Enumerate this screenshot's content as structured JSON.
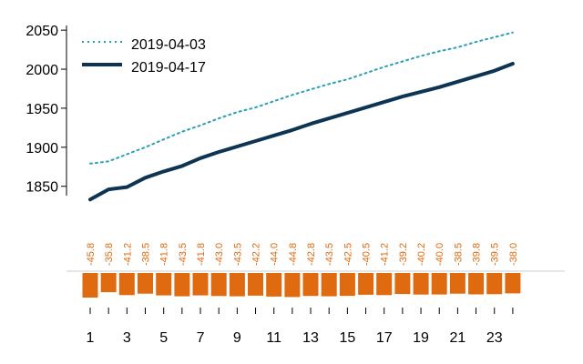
{
  "chart_data": [
    {
      "type": "line",
      "x": [
        1,
        2,
        3,
        4,
        5,
        6,
        7,
        8,
        9,
        10,
        11,
        12,
        13,
        14,
        15,
        16,
        17,
        18,
        19,
        20,
        21,
        22,
        23,
        24
      ],
      "series": [
        {
          "name": "2019-04-03",
          "color": "#2aa0b8",
          "style": "dotted",
          "values": [
            1879,
            1882,
            1891,
            1900,
            1910,
            1920,
            1928,
            1937,
            1945,
            1951,
            1959,
            1967,
            1974,
            1981,
            1987,
            1995,
            2003,
            2010,
            2017,
            2023,
            2028,
            2035,
            2041,
            2047
          ]
        },
        {
          "name": "2019-04-17",
          "color": "#0d3553",
          "style": "solid",
          "values": [
            1833,
            1846,
            1849,
            1861,
            1869,
            1876,
            1886,
            1894,
            1901,
            1908,
            1915,
            1922,
            1930,
            1937,
            1944,
            1951,
            1958,
            1965,
            1971,
            1977,
            1984,
            1991,
            1998,
            2007
          ]
        }
      ],
      "yticks": [
        1850,
        1900,
        1950,
        2000,
        2050
      ],
      "ylim": [
        1838,
        2056
      ],
      "legend_position": "top-left",
      "grid": false
    },
    {
      "type": "bar",
      "color": "#e06a10",
      "categories": [
        1,
        2,
        3,
        4,
        5,
        6,
        7,
        8,
        9,
        10,
        11,
        12,
        13,
        14,
        15,
        16,
        17,
        18,
        19,
        20,
        21,
        22,
        23,
        24
      ],
      "values": [
        -45.8,
        -35.8,
        -41.2,
        -38.5,
        -41.8,
        -43.5,
        -41.8,
        -43.0,
        -43.5,
        -42.2,
        -44.0,
        -44.8,
        -42.8,
        -43.5,
        -42.5,
        -40.5,
        -41.2,
        -39.2,
        -40.2,
        -40.0,
        -38.5,
        -39.8,
        -39.5,
        -38.0
      ],
      "data_labels": [
        "-45.8",
        "-35.8",
        "-41.2",
        "-38.5",
        "-41.8",
        "-43.5",
        "-41.8",
        "-43.0",
        "-43.5",
        "-42.2",
        "-44.0",
        "-44.8",
        "-42.8",
        "-43.5",
        "-42.5",
        "-40.5",
        "-41.2",
        "-39.2",
        "-40.2",
        "-40.0",
        "-38.5",
        "-39.8",
        "-39.5",
        "-38.0"
      ],
      "xticks": [
        "1",
        "3",
        "5",
        "7",
        "9",
        "11",
        "13",
        "15",
        "17",
        "19",
        "21",
        "23"
      ]
    }
  ]
}
